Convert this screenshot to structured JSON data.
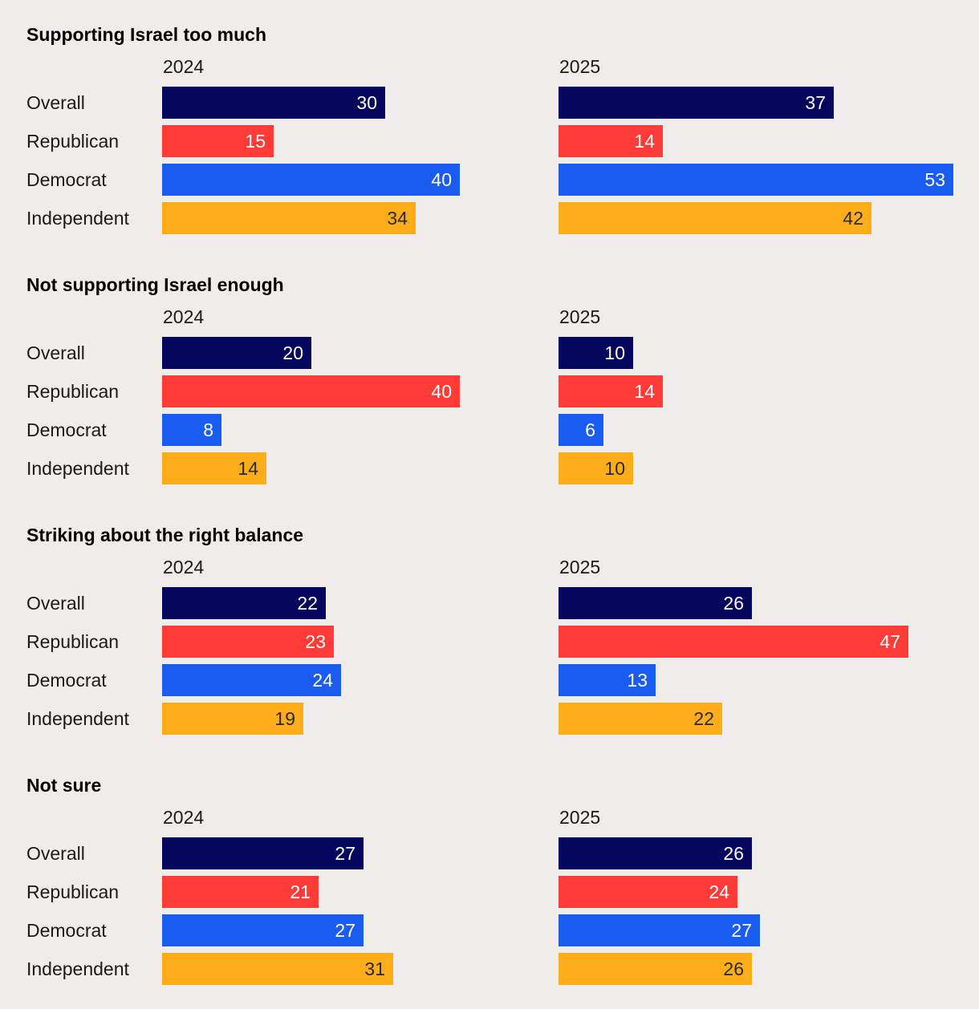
{
  "chart_data": {
    "type": "bar",
    "orientation": "horizontal",
    "years": [
      "2024",
      "2025"
    ],
    "categories": [
      "Overall",
      "Republican",
      "Democrat",
      "Independent"
    ],
    "colors": {
      "Overall": "#06075c",
      "Republican": "#ff3b38",
      "Democrat": "#1a5bf0",
      "Independent": "#fdad19"
    },
    "value_text_colors": {
      "Overall": "#ffffff",
      "Republican": "#ffffff",
      "Democrat": "#ffffff",
      "Independent": "#2a2a2a"
    },
    "panels": [
      {
        "title": "Supporting Israel too much",
        "values": {
          "2024": [
            30,
            15,
            40,
            34
          ],
          "2025": [
            37,
            14,
            53,
            42
          ]
        }
      },
      {
        "title": "Not supporting Israel enough",
        "values": {
          "2024": [
            20,
            40,
            8,
            14
          ],
          "2025": [
            10,
            14,
            6,
            10
          ]
        }
      },
      {
        "title": "Striking about the right balance",
        "values": {
          "2024": [
            22,
            23,
            24,
            19
          ],
          "2025": [
            26,
            47,
            13,
            22
          ]
        }
      },
      {
        "title": "Not sure",
        "values": {
          "2024": [
            27,
            21,
            27,
            31
          ],
          "2025": [
            26,
            24,
            27,
            26
          ]
        }
      }
    ],
    "xlim": [
      0,
      53
    ]
  }
}
